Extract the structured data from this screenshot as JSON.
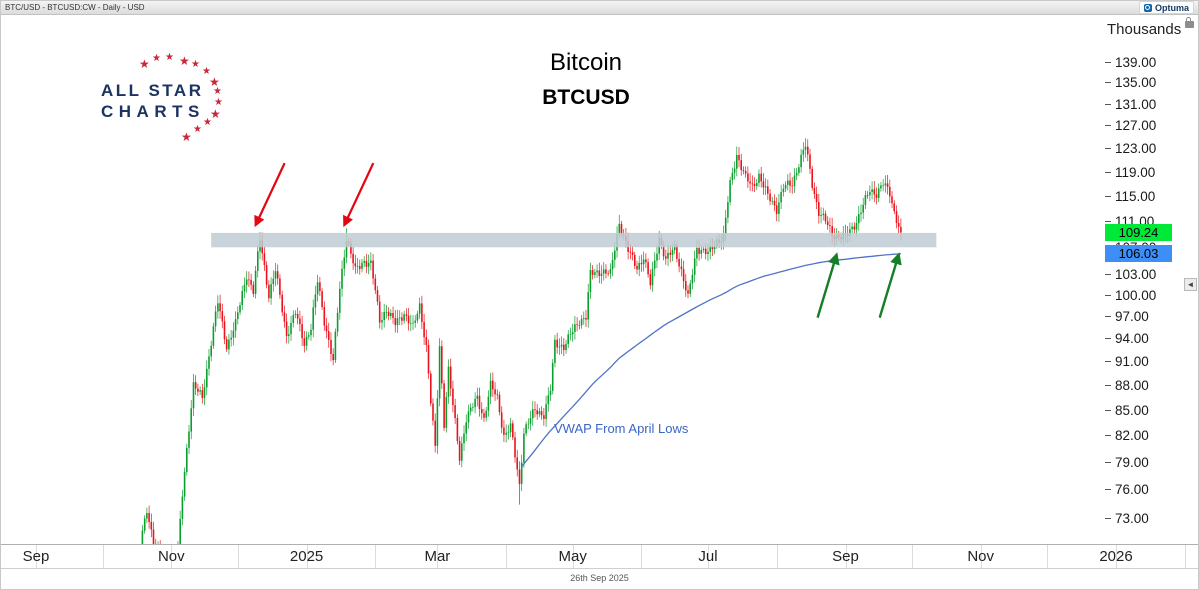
{
  "window": {
    "topbar_title": "BTC/USD - BTCUSD:CW - Daily - USD",
    "brand": "Optuma",
    "footer_date": "26th Sep 2025"
  },
  "logo": {
    "line1": "ALL STAR",
    "line2": "CHARTS"
  },
  "titles": {
    "line1": "Bitcoin",
    "line2": "BTCUSD"
  },
  "icons": {
    "collapse_axis": "◄"
  },
  "badges": {
    "last_price": "109.24",
    "vwap_price": "106.03"
  },
  "colors": {
    "up": "#0b9e2d",
    "down": "#e8131c",
    "vwap": "#4f74c7",
    "band": "#bfcbd3",
    "arrow_red": "#e30613",
    "arrow_green": "#157f27",
    "badge_last_bg": "#00e838",
    "badge_vwap_bg": "#3e8ef7"
  },
  "axis": {
    "unit_label": "Thousands",
    "ticks": [
      139,
      135,
      131,
      127,
      123,
      119,
      115,
      111,
      107,
      103,
      100,
      97,
      94,
      91,
      88,
      85,
      82,
      79,
      76,
      73
    ],
    "x_labels": [
      {
        "label": "Sep",
        "day": 0
      },
      {
        "label": "Nov",
        "day": 61
      },
      {
        "label": "2025",
        "day": 122
      },
      {
        "label": "Mar",
        "day": 181
      },
      {
        "label": "May",
        "day": 242
      },
      {
        "label": "Jul",
        "day": 303
      },
      {
        "label": "Sep",
        "day": 365
      },
      {
        "label": "Nov",
        "day": 426
      },
      {
        "label": "2026",
        "day": 487
      }
    ],
    "month_tick_days": [
      0,
      30,
      61,
      91,
      122,
      153,
      181,
      212,
      242,
      273,
      303,
      334,
      365,
      395,
      426,
      456,
      487,
      518
    ]
  },
  "chart_data": {
    "type": "candlestick",
    "symbol": "BTC/USD",
    "code": "BTCUSD:CW",
    "interval": "Daily",
    "currency": "USD",
    "title": "Bitcoin BTCUSD",
    "y_scale": "log",
    "y_unit": "Thousands",
    "visible_price_range_thousands": [
      70.4,
      147.0
    ],
    "bar_day_range": [
      48,
      390
    ],
    "last_close": 109.24,
    "vwap_label": "VWAP From April Lows",
    "vwap_current_value": 106.03,
    "support_band_thousands": [
      107.0,
      109.2
    ],
    "support_band_day_span": [
      79,
      406
    ],
    "price_anchors_day_price": [
      [
        44,
        68.5
      ],
      [
        46,
        69
      ],
      [
        50,
        74
      ],
      [
        53,
        70.5
      ],
      [
        57,
        69
      ],
      [
        62,
        68.5
      ],
      [
        64,
        69.5
      ],
      [
        66,
        75.5
      ],
      [
        71,
        88
      ],
      [
        75,
        86.5
      ],
      [
        82,
        99
      ],
      [
        86,
        93
      ],
      [
        90,
        96
      ],
      [
        95,
        103
      ],
      [
        98,
        100.5
      ],
      [
        101,
        108.3
      ],
      [
        105,
        100
      ],
      [
        108,
        103.5
      ],
      [
        113,
        94.5
      ],
      [
        117,
        97.5
      ],
      [
        121,
        93.5
      ],
      [
        124,
        95.5
      ],
      [
        127,
        102
      ],
      [
        130,
        96.5
      ],
      [
        134,
        91
      ],
      [
        137,
        101
      ],
      [
        140,
        108.5
      ],
      [
        144,
        103.5
      ],
      [
        148,
        105
      ],
      [
        151,
        104.5
      ],
      [
        155,
        96.5
      ],
      [
        158,
        98
      ],
      [
        162,
        96
      ],
      [
        166,
        97.5
      ],
      [
        170,
        95.5
      ],
      [
        173,
        98.5
      ],
      [
        176,
        93
      ],
      [
        178,
        86
      ],
      [
        180,
        80.5
      ],
      [
        182,
        93
      ],
      [
        184,
        83.5
      ],
      [
        186,
        90
      ],
      [
        188,
        85.5
      ],
      [
        191,
        79.5
      ],
      [
        194,
        84
      ],
      [
        199,
        86.5
      ],
      [
        202,
        84
      ],
      [
        205,
        88
      ],
      [
        208,
        86.5
      ],
      [
        211,
        82
      ],
      [
        214,
        83
      ],
      [
        218,
        76.5
      ],
      [
        220,
        82.5
      ],
      [
        225,
        85
      ],
      [
        229,
        84.5
      ],
      [
        232,
        87.5
      ],
      [
        234,
        93.5
      ],
      [
        238,
        93
      ],
      [
        241,
        94.5
      ],
      [
        245,
        96.5
      ],
      [
        248,
        97
      ],
      [
        250,
        103
      ],
      [
        255,
        103.5
      ],
      [
        259,
        103
      ],
      [
        263,
        110.8
      ],
      [
        267,
        106.5
      ],
      [
        271,
        104
      ],
      [
        274,
        105.5
      ],
      [
        277,
        101.5
      ],
      [
        281,
        108.5
      ],
      [
        284,
        105
      ],
      [
        288,
        107
      ],
      [
        291,
        103.5
      ],
      [
        294,
        99.5
      ],
      [
        298,
        107
      ],
      [
        303,
        106
      ],
      [
        307,
        108
      ],
      [
        310,
        108.5
      ],
      [
        313,
        117
      ],
      [
        316,
        122
      ],
      [
        320,
        118
      ],
      [
        323,
        116.5
      ],
      [
        326,
        118.5
      ],
      [
        330,
        115
      ],
      [
        334,
        113
      ],
      [
        337,
        116.5
      ],
      [
        341,
        117
      ],
      [
        344,
        120.5
      ],
      [
        347,
        123.5
      ],
      [
        350,
        117
      ],
      [
        353,
        112.5
      ],
      [
        356,
        111
      ],
      [
        359,
        109
      ],
      [
        362,
        108.7
      ],
      [
        365,
        108.5
      ],
      [
        368,
        110
      ],
      [
        370,
        111
      ],
      [
        373,
        113.5
      ],
      [
        376,
        116
      ],
      [
        379,
        115.5
      ],
      [
        382,
        117
      ],
      [
        385,
        115.5
      ],
      [
        387,
        112.5
      ],
      [
        390,
        109.24
      ]
    ],
    "special_wicks": [
      {
        "day": 101,
        "high": 109.0
      },
      {
        "day": 140,
        "high": 109.9
      },
      {
        "day": 218,
        "low": 74.4
      },
      {
        "day": 263,
        "high": 112.0
      },
      {
        "day": 316,
        "high": 123.2
      },
      {
        "day": 347,
        "high": 124.5
      },
      {
        "day": 390,
        "low": 108.6
      }
    ],
    "vwap_day_value": [
      [
        219,
        78.5
      ],
      [
        224,
        80
      ],
      [
        230,
        82
      ],
      [
        237,
        84
      ],
      [
        244,
        86
      ],
      [
        252,
        88.5
      ],
      [
        258,
        90
      ],
      [
        263,
        91.5
      ],
      [
        270,
        93
      ],
      [
        277,
        94.5
      ],
      [
        284,
        96
      ],
      [
        290,
        97
      ],
      [
        297,
        98.2
      ],
      [
        303,
        99.2
      ],
      [
        310,
        100.2
      ],
      [
        316,
        101.3
      ],
      [
        322,
        102
      ],
      [
        328,
        102.7
      ],
      [
        334,
        103.2
      ],
      [
        341,
        103.8
      ],
      [
        347,
        104.3
      ],
      [
        353,
        104.7
      ],
      [
        359,
        105
      ],
      [
        365,
        105.2
      ],
      [
        371,
        105.45
      ],
      [
        377,
        105.65
      ],
      [
        383,
        105.85
      ],
      [
        390,
        106.03
      ]
    ],
    "red_arrow_tips_day_price": [
      [
        99,
        110.4
      ],
      [
        139,
        110.4
      ]
    ],
    "green_arrow_tips_day_price": [
      [
        361,
        105.9
      ],
      [
        389,
        105.9
      ]
    ]
  }
}
